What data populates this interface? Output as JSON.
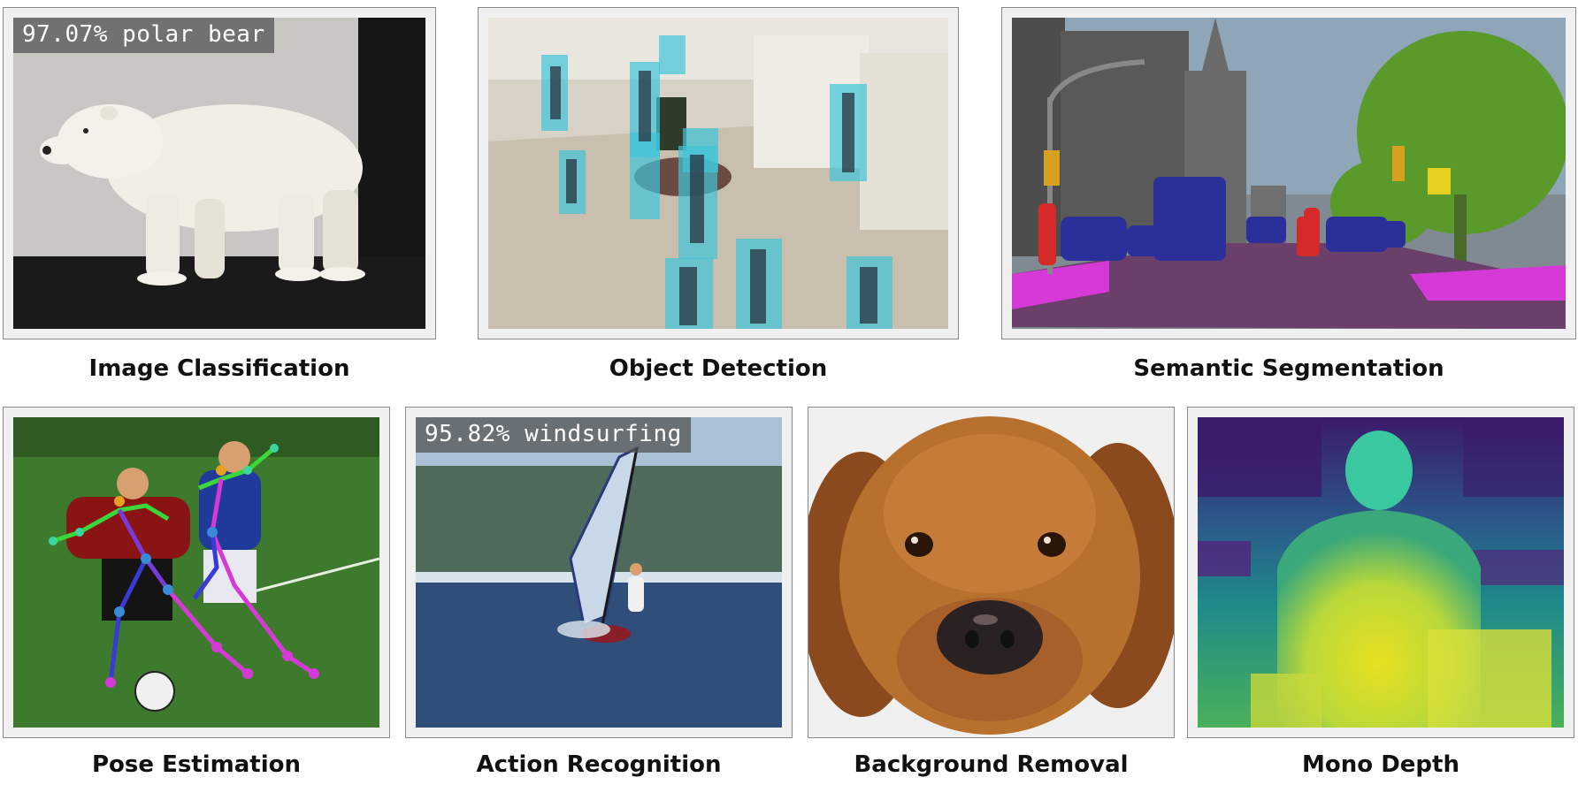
{
  "panels": {
    "classification": {
      "caption": "Image Classification",
      "overlay": "97.07% polar bear"
    },
    "detection": {
      "caption": "Object Detection"
    },
    "segmentation": {
      "caption": "Semantic Segmentation"
    },
    "pose": {
      "caption": "Pose Estimation"
    },
    "action": {
      "caption": "Action Recognition",
      "overlay": "95.82% windsurfing"
    },
    "background": {
      "caption": "Background Removal"
    },
    "depth": {
      "caption": "Mono Depth"
    }
  },
  "colors": {
    "detection_box": "#3fc4d8",
    "segmentation_car": "#2a2f9a",
    "segmentation_sidewalk": "#d63ad6",
    "segmentation_person": "#d62a2a",
    "segmentation_vegetation": "#5a9a2a",
    "depth_far": "#3b1a6b",
    "depth_near": "#e8e020"
  }
}
